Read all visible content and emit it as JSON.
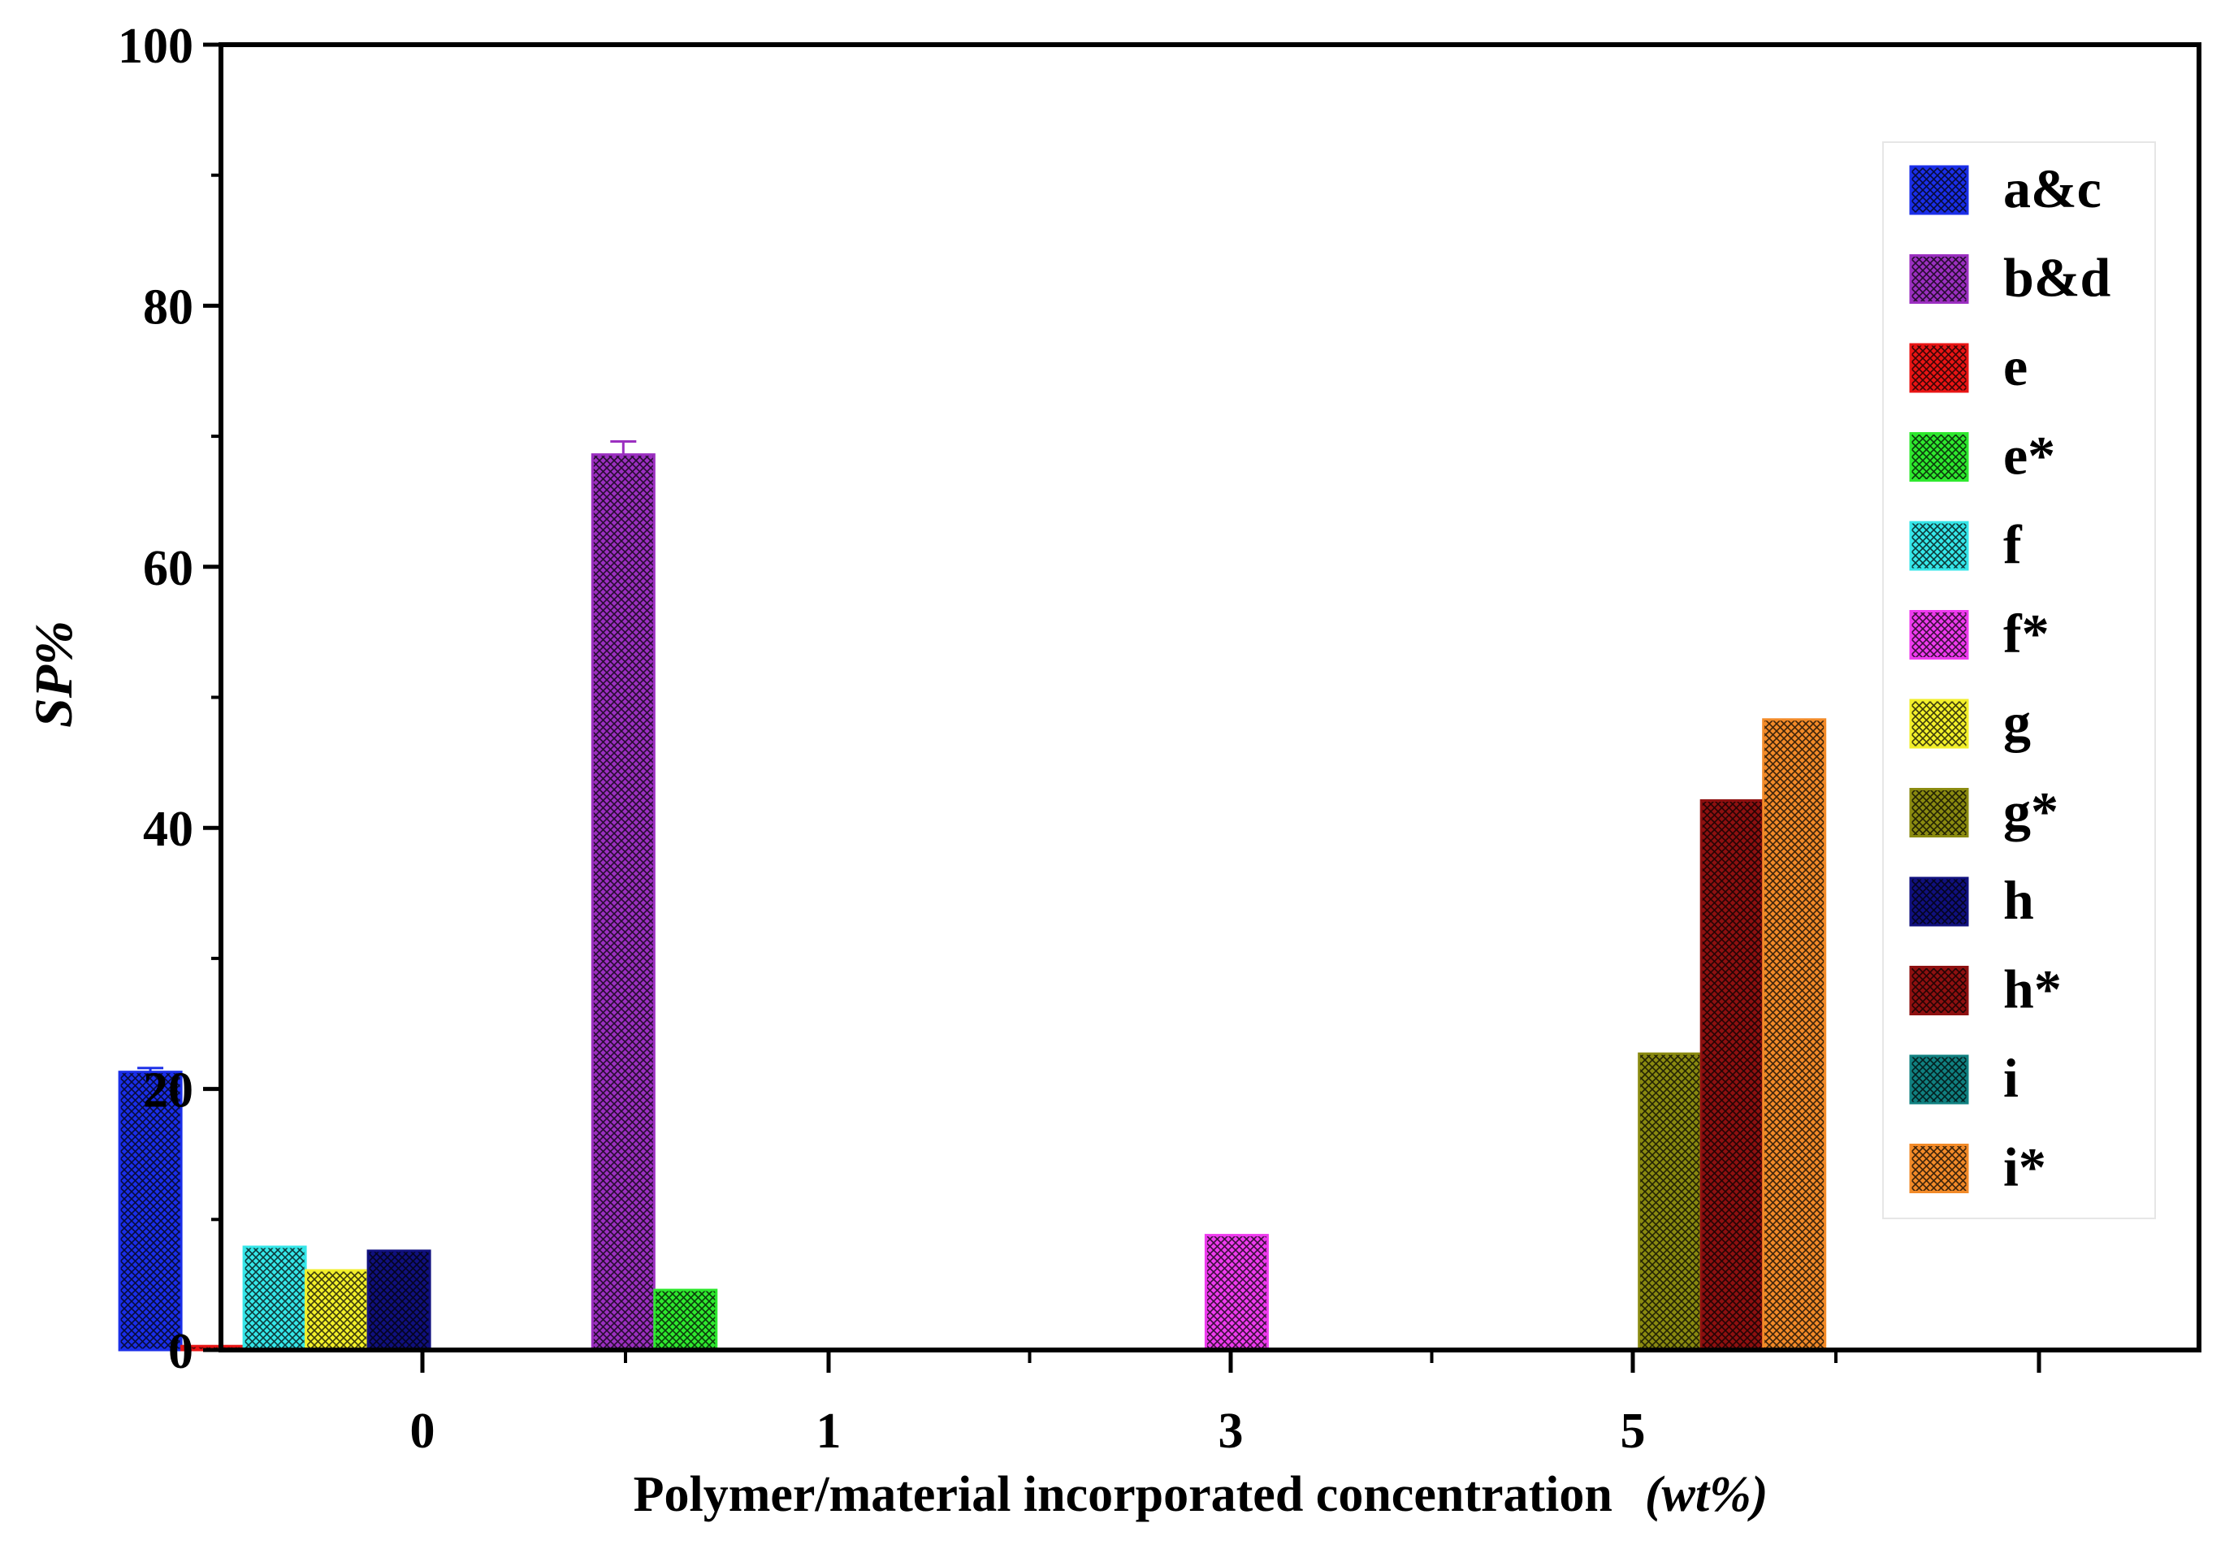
{
  "chart_data": {
    "type": "bar",
    "xlabel": "Polymer/material incorporated concentration",
    "xlabel_unit": "(wt%)",
    "ylabel": "SP%",
    "ylim": [
      0,
      100
    ],
    "yticks": [
      0,
      20,
      40,
      60,
      80,
      100
    ],
    "categories": [
      "0",
      "1",
      "3",
      "5"
    ],
    "legend_position": "top-right",
    "grid": false,
    "bars": [
      {
        "series": "a&c",
        "category": "0",
        "value": 21.3,
        "error": 0.3
      },
      {
        "series": "e",
        "category": "0",
        "value": 0.3,
        "error": 0
      },
      {
        "series": "f",
        "category": "0",
        "value": 7.9,
        "error": 0
      },
      {
        "series": "g",
        "category": "0",
        "value": 6.1,
        "error": 0
      },
      {
        "series": "h",
        "category": "0",
        "value": 7.6,
        "error": 0
      },
      {
        "series": "b&d",
        "category": "1",
        "value": 68.6,
        "error": 1.0
      },
      {
        "series": "e*",
        "category": "1",
        "value": 4.6,
        "error": 0
      },
      {
        "series": "f*",
        "category": "3",
        "value": 8.8,
        "error": 0
      },
      {
        "series": "g*",
        "category": "5",
        "value": 22.7,
        "error": 0
      },
      {
        "series": "h*",
        "category": "5",
        "value": 42.1,
        "error": 0
      },
      {
        "series": "i*",
        "category": "5",
        "value": 48.3,
        "error": 0
      }
    ],
    "series": [
      {
        "name": "a&c",
        "color": "#1a2ee8"
      },
      {
        "name": "b&d",
        "color": "#9b2fc0"
      },
      {
        "name": "e",
        "color": "#e81414"
      },
      {
        "name": "e*",
        "color": "#2ee82e"
      },
      {
        "name": "f",
        "color": "#35e6e8"
      },
      {
        "name": "f*",
        "color": "#ee3aee"
      },
      {
        "name": "g",
        "color": "#f2ef2a"
      },
      {
        "name": "g*",
        "color": "#8a8a10"
      },
      {
        "name": "h",
        "color": "#10107e"
      },
      {
        "name": "h*",
        "color": "#8e1010"
      },
      {
        "name": "i",
        "color": "#108080"
      },
      {
        "name": "i*",
        "color": "#f28a28"
      }
    ]
  }
}
